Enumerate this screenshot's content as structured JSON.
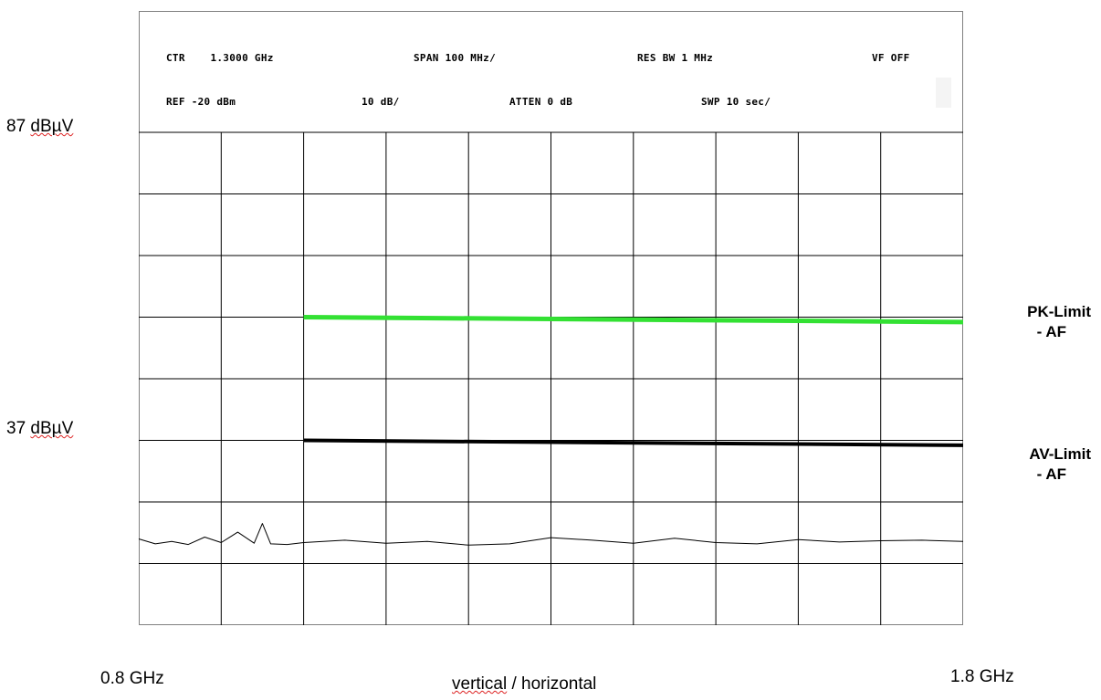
{
  "header": {
    "ctr": "CTR    1.3000 GHz",
    "span": "SPAN 100 MHz/",
    "res_bw": "RES BW 1 MHz",
    "vf": "VF OFF",
    "ref": "REF -20 dBm",
    "div": "10 dB/",
    "atten": "ATTEN 0 dB",
    "swp": "SWP 10 sec/"
  },
  "y_labels": {
    "top": {
      "value": "87 ",
      "unit": "dBµV"
    },
    "mid": {
      "value": "37 ",
      "unit": "dBµV"
    }
  },
  "x_labels": {
    "left": "0.8 GHz",
    "right": "1.8 GHz",
    "title_a": "vertical",
    "title_b": " / horizontal"
  },
  "limit_labels": {
    "pk_line1": "PK-Limit",
    "pk_line2": "- AF",
    "av_line1": "AV-Limit",
    "av_line2": "- AF"
  },
  "colors": {
    "pk_limit": "#33e133",
    "av_limit": "#000000",
    "grid": "#000000",
    "trace": "#000000"
  },
  "chart_data": {
    "type": "line",
    "xlim": [
      0.8,
      1.8
    ],
    "ylim": [
      7,
      87
    ],
    "x_divisions": 10,
    "y_divisions": 8,
    "series": [
      {
        "name": "PK-Limit - AF",
        "x": [
          1.0,
          1.8
        ],
        "values": [
          57,
          56.2
        ]
      },
      {
        "name": "AV-Limit - AF",
        "x": [
          1.0,
          1.8
        ],
        "values": [
          37,
          36.2
        ]
      },
      {
        "x": [
          0.8,
          0.82,
          0.84,
          0.86,
          0.88,
          0.9,
          0.92,
          0.94,
          0.95,
          0.96,
          0.98,
          1.0,
          1.05,
          1.1,
          1.15,
          1.2,
          1.25,
          1.3,
          1.35,
          1.4,
          1.45,
          1.5,
          1.55,
          1.6,
          1.65,
          1.7,
          1.75,
          1.8
        ],
        "values": [
          21.0,
          20.2,
          20.6,
          20.1,
          21.3,
          20.4,
          22.1,
          20.3,
          23.5,
          20.2,
          20.1,
          20.4,
          20.8,
          20.3,
          20.6,
          20.0,
          20.2,
          21.2,
          20.8,
          20.3,
          21.1,
          20.4,
          20.2,
          20.9,
          20.5,
          20.7,
          20.8,
          20.6
        ]
      }
    ]
  }
}
